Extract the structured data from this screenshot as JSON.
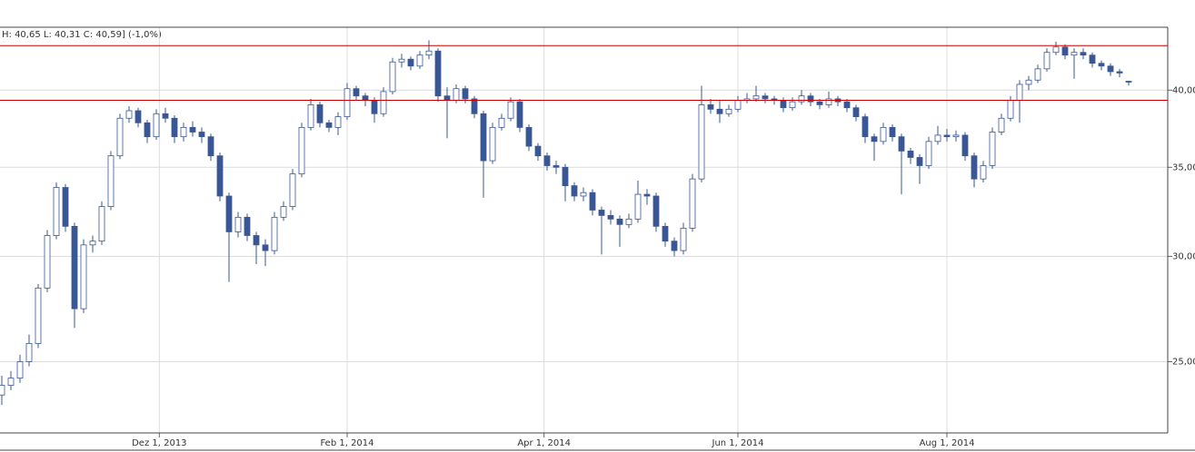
{
  "chart_data": {
    "type": "candlestick",
    "legend_text": "H: 40,65  L: 40,31  C: 40,59] (-1,0%)",
    "up_color": "#ffffff",
    "down_color": "#3a5795",
    "wick_color": "#3a5795",
    "log_scale": true,
    "grid": true,
    "ylim": [
      22.1,
      44.6
    ],
    "yticks": [
      {
        "value": 25,
        "label": "25,00"
      },
      {
        "value": 30,
        "label": "30,00"
      },
      {
        "value": 35,
        "label": "35,00"
      },
      {
        "value": 40,
        "label": "40,00"
      }
    ],
    "xticks": [
      {
        "value": "2013-12-01",
        "label": "Dez 1, 2013"
      },
      {
        "value": "2014-02-01",
        "label": "Feb 1, 2014"
      },
      {
        "value": "2014-04-01",
        "label": "Apr 1, 2014"
      },
      {
        "value": "2014-06-01",
        "label": "Jun 1, 2014"
      },
      {
        "value": "2014-08-01",
        "label": "Aug 1, 2014"
      }
    ],
    "reference_lines": [
      {
        "value": 43.2,
        "color": "#cc0000"
      },
      {
        "value": 39.3,
        "color": "#cc0000"
      }
    ],
    "x": [
      "2013-10-10",
      "2013-10-13",
      "2013-10-16",
      "2013-10-19",
      "2013-10-22",
      "2013-10-25",
      "2013-10-28",
      "2013-10-31",
      "2013-11-03",
      "2013-11-06",
      "2013-11-09",
      "2013-11-12",
      "2013-11-15",
      "2013-11-18",
      "2013-11-21",
      "2013-11-24",
      "2013-11-27",
      "2013-11-30",
      "2013-12-03",
      "2013-12-06",
      "2013-12-09",
      "2013-12-12",
      "2013-12-15",
      "2013-12-18",
      "2013-12-21",
      "2013-12-24",
      "2013-12-27",
      "2013-12-30",
      "2014-01-02",
      "2014-01-05",
      "2014-01-08",
      "2014-01-11",
      "2014-01-14",
      "2014-01-17",
      "2014-01-20",
      "2014-01-23",
      "2014-01-26",
      "2014-01-29",
      "2014-02-01",
      "2014-02-04",
      "2014-02-07",
      "2014-02-10",
      "2014-02-12",
      "2014-02-15",
      "2014-02-18",
      "2014-02-20",
      "2014-02-23",
      "2014-02-26",
      "2014-03-01",
      "2014-03-03",
      "2014-03-06",
      "2014-03-08",
      "2014-03-11",
      "2014-03-14",
      "2014-03-16",
      "2014-03-19",
      "2014-03-22",
      "2014-03-24",
      "2014-03-27",
      "2014-03-30",
      "2014-04-02",
      "2014-04-05",
      "2014-04-08",
      "2014-04-10",
      "2014-04-13",
      "2014-04-16",
      "2014-04-19",
      "2014-04-22",
      "2014-04-25",
      "2014-04-28",
      "2014-05-01",
      "2014-05-03",
      "2014-05-06",
      "2014-05-09",
      "2014-05-12",
      "2014-05-15",
      "2014-05-18",
      "2014-05-21",
      "2014-05-24",
      "2014-05-27",
      "2014-05-30",
      "2014-06-01",
      "2014-06-04",
      "2014-06-06",
      "2014-06-09",
      "2014-06-12",
      "2014-06-14",
      "2014-06-17",
      "2014-06-20",
      "2014-06-22",
      "2014-06-25",
      "2014-06-28",
      "2014-06-30",
      "2014-07-03",
      "2014-07-05",
      "2014-07-08",
      "2014-07-11",
      "2014-07-13",
      "2014-07-16",
      "2014-07-19",
      "2014-07-21",
      "2014-07-24",
      "2014-07-27",
      "2014-07-29",
      "2014-08-01",
      "2014-08-04",
      "2014-08-06",
      "2014-08-09",
      "2014-08-12",
      "2014-08-14",
      "2014-08-17",
      "2014-08-20",
      "2014-08-22",
      "2014-08-25",
      "2014-08-28",
      "2014-08-30",
      "2014-09-02",
      "2014-09-04",
      "2014-09-07",
      "2014-09-10",
      "2014-09-12",
      "2014-09-15",
      "2014-09-18",
      "2014-09-20",
      "2014-09-23"
    ],
    "candles": [
      [
        23.6,
        24.4,
        23.2,
        24.0
      ],
      [
        24.0,
        24.6,
        23.8,
        24.3
      ],
      [
        24.3,
        25.3,
        24.1,
        25.0
      ],
      [
        25.0,
        26.2,
        24.8,
        25.8
      ],
      [
        25.8,
        28.6,
        25.6,
        28.4
      ],
      [
        28.4,
        31.4,
        28.2,
        31.1
      ],
      [
        31.1,
        34.1,
        30.9,
        33.8
      ],
      [
        33.8,
        34.0,
        31.3,
        31.6
      ],
      [
        31.6,
        31.8,
        26.5,
        27.4
      ],
      [
        27.4,
        30.9,
        27.2,
        30.6
      ],
      [
        30.6,
        31.1,
        30.2,
        30.8
      ],
      [
        30.8,
        33.0,
        30.6,
        32.7
      ],
      [
        32.7,
        36.0,
        32.5,
        35.7
      ],
      [
        35.7,
        38.4,
        35.5,
        38.1
      ],
      [
        38.1,
        38.9,
        37.8,
        38.6
      ],
      [
        38.6,
        38.8,
        37.5,
        37.8
      ],
      [
        37.8,
        38.0,
        36.5,
        36.9
      ],
      [
        36.9,
        38.7,
        36.7,
        38.4
      ],
      [
        38.4,
        38.8,
        37.8,
        38.1
      ],
      [
        38.1,
        38.3,
        36.5,
        36.9
      ],
      [
        36.9,
        37.8,
        36.6,
        37.5
      ],
      [
        37.5,
        37.9,
        36.9,
        37.2
      ],
      [
        37.2,
        37.5,
        36.5,
        36.9
      ],
      [
        36.9,
        37.1,
        35.4,
        35.7
      ],
      [
        35.7,
        35.9,
        33.0,
        33.3
      ],
      [
        33.3,
        33.5,
        28.7,
        31.3
      ],
      [
        31.3,
        32.4,
        31.0,
        32.1
      ],
      [
        32.1,
        32.3,
        30.8,
        31.1
      ],
      [
        31.1,
        31.3,
        29.6,
        30.6
      ],
      [
        30.6,
        30.9,
        29.5,
        30.3
      ],
      [
        30.3,
        32.4,
        30.1,
        32.1
      ],
      [
        32.1,
        33.0,
        31.9,
        32.7
      ],
      [
        32.7,
        34.9,
        32.5,
        34.6
      ],
      [
        34.6,
        37.8,
        34.4,
        37.5
      ],
      [
        37.5,
        39.4,
        37.3,
        39.0
      ],
      [
        39.0,
        39.2,
        37.5,
        37.8
      ],
      [
        37.8,
        38.0,
        37.2,
        37.5
      ],
      [
        37.5,
        38.5,
        37.0,
        38.2
      ],
      [
        38.2,
        40.5,
        38.0,
        40.1
      ],
      [
        40.1,
        40.3,
        39.3,
        39.6
      ],
      [
        39.6,
        39.8,
        38.9,
        39.3
      ],
      [
        39.3,
        39.5,
        37.8,
        38.4
      ],
      [
        38.4,
        40.2,
        38.2,
        39.9
      ],
      [
        39.9,
        42.3,
        39.7,
        42.0
      ],
      [
        42.0,
        42.6,
        41.6,
        42.2
      ],
      [
        42.2,
        42.4,
        41.4,
        41.7
      ],
      [
        41.7,
        42.8,
        41.5,
        42.5
      ],
      [
        42.5,
        43.6,
        42.2,
        42.8
      ],
      [
        42.8,
        43.0,
        39.2,
        39.6
      ],
      [
        39.6,
        40.2,
        36.8,
        39.3
      ],
      [
        39.3,
        40.4,
        39.1,
        40.1
      ],
      [
        40.1,
        40.3,
        39.1,
        39.4
      ],
      [
        39.4,
        39.6,
        38.1,
        38.4
      ],
      [
        38.4,
        38.6,
        33.2,
        35.4
      ],
      [
        35.4,
        37.8,
        35.2,
        37.5
      ],
      [
        37.5,
        38.4,
        37.3,
        38.1
      ],
      [
        38.1,
        39.5,
        37.9,
        39.2
      ],
      [
        39.2,
        39.4,
        37.2,
        37.5
      ],
      [
        37.5,
        37.7,
        36.0,
        36.3
      ],
      [
        36.3,
        36.5,
        35.4,
        35.7
      ],
      [
        35.7,
        35.9,
        34.8,
        35.1
      ],
      [
        35.1,
        35.4,
        34.6,
        35.0
      ],
      [
        35.0,
        35.2,
        33.0,
        33.9
      ],
      [
        33.9,
        34.1,
        33.0,
        33.3
      ],
      [
        33.3,
        33.8,
        33.0,
        33.5
      ],
      [
        33.5,
        33.7,
        32.2,
        32.5
      ],
      [
        32.5,
        32.7,
        30.1,
        32.2
      ],
      [
        32.2,
        32.5,
        31.7,
        32.0
      ],
      [
        32.0,
        32.2,
        30.5,
        31.7
      ],
      [
        31.7,
        32.3,
        31.5,
        32.0
      ],
      [
        32.0,
        34.2,
        31.8,
        33.4
      ],
      [
        33.4,
        33.7,
        32.8,
        33.3
      ],
      [
        33.3,
        33.5,
        31.3,
        31.6
      ],
      [
        31.6,
        31.8,
        30.5,
        30.8
      ],
      [
        30.8,
        31.0,
        30.0,
        30.3
      ],
      [
        30.3,
        31.8,
        30.1,
        31.5
      ],
      [
        31.5,
        34.6,
        31.3,
        34.3
      ],
      [
        34.3,
        40.3,
        34.1,
        39.0
      ],
      [
        39.0,
        39.4,
        38.4,
        38.7
      ],
      [
        38.7,
        39.3,
        37.8,
        38.4
      ],
      [
        38.4,
        39.0,
        38.2,
        38.7
      ],
      [
        38.7,
        39.6,
        38.5,
        39.3
      ],
      [
        39.3,
        39.8,
        39.1,
        39.4
      ],
      [
        39.4,
        40.3,
        39.2,
        39.6
      ],
      [
        39.6,
        39.8,
        39.1,
        39.4
      ],
      [
        39.4,
        39.6,
        39.0,
        39.3
      ],
      [
        39.3,
        39.5,
        38.5,
        38.8
      ],
      [
        38.8,
        39.5,
        38.6,
        39.2
      ],
      [
        39.2,
        40.0,
        39.0,
        39.6
      ],
      [
        39.6,
        39.8,
        38.9,
        39.2
      ],
      [
        39.2,
        39.4,
        38.7,
        39.0
      ],
      [
        39.0,
        39.9,
        38.8,
        39.4
      ],
      [
        39.4,
        39.6,
        38.9,
        39.2
      ],
      [
        39.2,
        39.4,
        38.5,
        38.8
      ],
      [
        38.8,
        39.0,
        37.9,
        38.2
      ],
      [
        38.2,
        38.4,
        36.5,
        36.9
      ],
      [
        36.9,
        37.1,
        35.4,
        36.6
      ],
      [
        36.6,
        37.8,
        36.4,
        37.5
      ],
      [
        37.5,
        37.7,
        36.6,
        36.9
      ],
      [
        36.9,
        37.1,
        33.4,
        36.0
      ],
      [
        36.0,
        36.2,
        35.2,
        35.6
      ],
      [
        35.6,
        35.8,
        34.0,
        35.1
      ],
      [
        35.1,
        36.9,
        34.9,
        36.6
      ],
      [
        36.6,
        37.6,
        36.4,
        37.0
      ],
      [
        37.0,
        37.4,
        36.6,
        36.9
      ],
      [
        36.9,
        37.3,
        36.6,
        37.0
      ],
      [
        37.0,
        37.2,
        35.4,
        35.7
      ],
      [
        35.7,
        35.9,
        33.8,
        34.3
      ],
      [
        34.3,
        35.4,
        34.1,
        35.1
      ],
      [
        35.1,
        37.5,
        34.9,
        37.2
      ],
      [
        37.2,
        38.4,
        37.0,
        38.1
      ],
      [
        38.1,
        39.6,
        37.9,
        39.3
      ],
      [
        39.3,
        40.7,
        37.8,
        40.4
      ],
      [
        40.4,
        41.0,
        40.0,
        40.7
      ],
      [
        40.7,
        41.8,
        40.5,
        41.5
      ],
      [
        41.5,
        43.0,
        41.3,
        42.7
      ],
      [
        42.7,
        43.5,
        42.5,
        43.1
      ],
      [
        43.1,
        43.3,
        42.2,
        42.5
      ],
      [
        42.5,
        43.0,
        40.8,
        42.7
      ],
      [
        42.7,
        43.0,
        42.2,
        42.5
      ],
      [
        42.5,
        42.7,
        41.6,
        41.9
      ],
      [
        41.9,
        42.1,
        41.4,
        41.7
      ],
      [
        41.7,
        41.9,
        41.0,
        41.3
      ],
      [
        41.3,
        41.5,
        40.9,
        41.2
      ],
      [
        40.62,
        40.65,
        40.31,
        40.59
      ]
    ]
  }
}
